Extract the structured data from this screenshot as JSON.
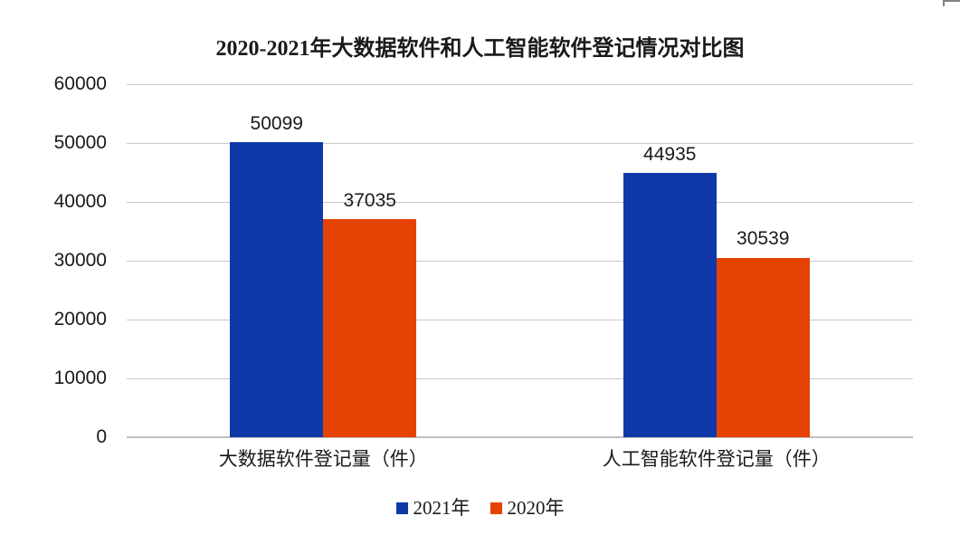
{
  "chart_data": {
    "type": "bar",
    "title": "2020-2021年大数据软件和人工智能软件登记情况对比图",
    "categories": [
      "大数据软件登记量（件）",
      "人工智能软件登记量（件）"
    ],
    "series": [
      {
        "name": "2021年",
        "color": "#0f39a8",
        "values": [
          50099,
          44935
        ]
      },
      {
        "name": "2020年",
        "color": "#e54303",
        "values": [
          37035,
          30539
        ]
      }
    ],
    "yticks": [
      0,
      10000,
      20000,
      30000,
      40000,
      50000,
      60000
    ],
    "ylim": [
      0,
      60000
    ],
    "grid": true,
    "legend_position": "bottom",
    "data_labels": true,
    "xlabel": "",
    "ylabel": ""
  },
  "colors": {
    "gridline": "#c9c9c9",
    "axis_line": "#bfbfbf",
    "text": "#1a1a1a",
    "background": "#ffffff"
  }
}
